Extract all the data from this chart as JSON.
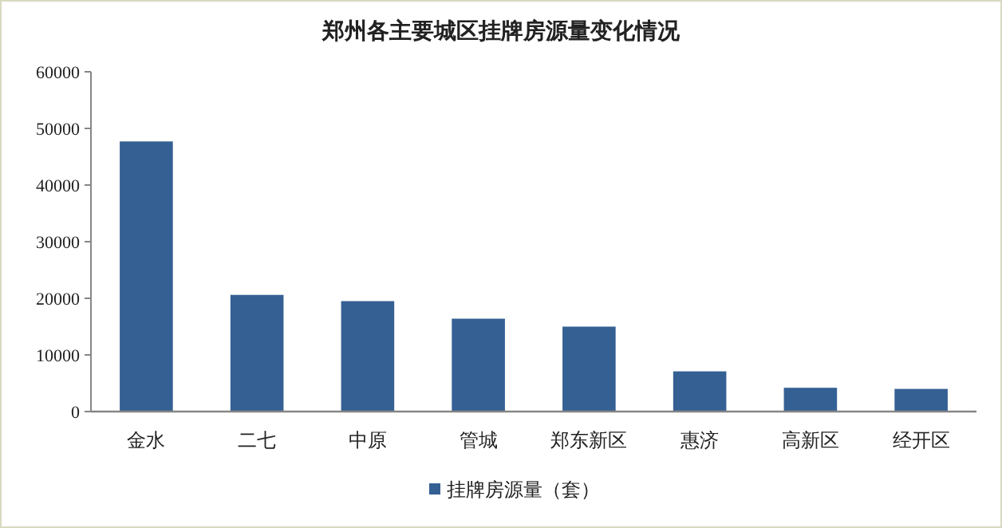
{
  "chart_data": {
    "type": "bar",
    "title": "郑州各主要城区挂牌房源量变化情况",
    "categories": [
      "金水",
      "二七",
      "中原",
      "管城",
      "郑东新区",
      "惠济",
      "高新区",
      "经开区"
    ],
    "series": [
      {
        "name": "挂牌房源量（套）",
        "color": "#356093",
        "values": [
          47700,
          20600,
          19500,
          16400,
          15000,
          7100,
          4200,
          4000
        ]
      }
    ],
    "ylim": [
      0,
      60000
    ],
    "yticks": [
      0,
      10000,
      20000,
      30000,
      40000,
      50000,
      60000
    ],
    "grid": false,
    "legend": "bottom"
  }
}
